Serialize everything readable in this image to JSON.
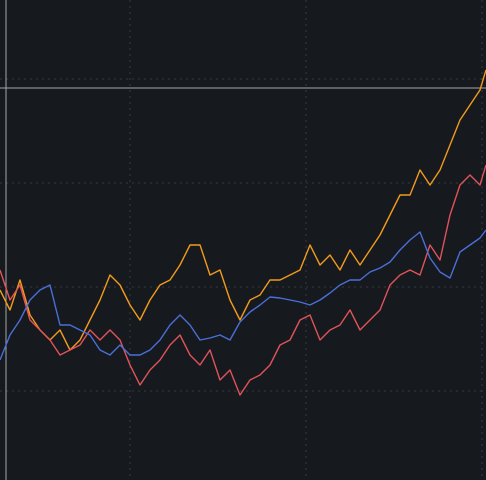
{
  "chart_data": {
    "type": "line",
    "x": [
      0,
      10,
      20,
      30,
      40,
      50,
      60,
      70,
      80,
      90,
      100,
      110,
      120,
      130,
      140,
      150,
      160,
      170,
      180,
      190,
      200,
      210,
      220,
      230,
      240,
      250,
      260,
      270,
      280,
      290,
      300,
      310,
      320,
      330,
      340,
      350,
      360,
      370,
      380,
      390,
      400,
      410,
      420,
      430,
      440,
      450,
      460,
      470,
      480,
      486
    ],
    "xlim": [
      0,
      486
    ],
    "xticks": [
      130,
      306,
      482
    ],
    "ylim": [
      0,
      480
    ],
    "yticks": [
      89,
      193,
      297,
      401
    ],
    "grid": true,
    "background": "#16191e",
    "grid_color": "#363b43",
    "crosshair": {
      "x": 6,
      "y": 392,
      "color": "#a8a8a8"
    },
    "series": [
      {
        "color": "#f29b1c",
        "values": [
          190,
          170,
          200,
          165,
          150,
          140,
          150,
          130,
          140,
          160,
          180,
          205,
          195,
          175,
          160,
          180,
          195,
          200,
          215,
          235,
          235,
          205,
          210,
          180,
          160,
          180,
          185,
          200,
          200,
          205,
          210,
          235,
          215,
          225,
          210,
          230,
          215,
          230,
          245,
          265,
          285,
          285,
          310,
          295,
          310,
          335,
          360,
          375,
          390,
          410
        ]
      },
      {
        "color": "#e0535a",
        "values": [
          210,
          180,
          195,
          160,
          150,
          140,
          125,
          130,
          135,
          150,
          140,
          150,
          140,
          115,
          95,
          110,
          120,
          135,
          145,
          125,
          115,
          130,
          100,
          110,
          85,
          100,
          105,
          115,
          135,
          140,
          160,
          165,
          140,
          150,
          155,
          170,
          150,
          160,
          170,
          195,
          205,
          210,
          205,
          235,
          220,
          265,
          295,
          305,
          295,
          315
        ]
      },
      {
        "color": "#4a6fd8",
        "values": [
          120,
          145,
          160,
          180,
          190,
          195,
          155,
          155,
          150,
          145,
          130,
          125,
          135,
          125,
          125,
          130,
          140,
          155,
          165,
          155,
          140,
          142,
          145,
          140,
          158,
          168,
          175,
          183,
          182,
          180,
          178,
          175,
          180,
          187,
          195,
          200,
          200,
          208,
          212,
          218,
          230,
          240,
          248,
          222,
          208,
          202,
          228,
          235,
          242,
          250
        ]
      }
    ]
  }
}
